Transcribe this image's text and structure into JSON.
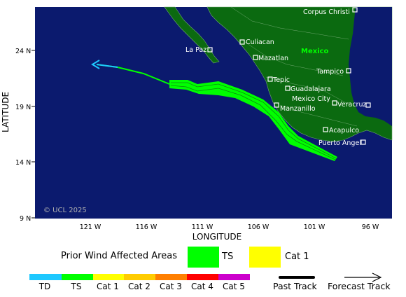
{
  "axes": {
    "x_title": "LONGITUDE",
    "y_title": "LATITUDE",
    "x_ticks": [
      "121 W",
      "116 W",
      "111 W",
      "106 W",
      "101 W",
      "96 W"
    ],
    "y_ticks": [
      "24 N",
      "19 N",
      "14 N",
      "9 N"
    ]
  },
  "map": {
    "copyright": "© UCL 2025",
    "country_label": "Mexico",
    "cities": [
      "Corpus Christi",
      "La Paz",
      "Culiacan",
      "Mazatlan",
      "Tampico",
      "Tepic",
      "Guadalajara",
      "Mexico City",
      "Veracruz",
      "Manzanillo",
      "Acapulco",
      "Puerto Angel"
    ],
    "colors": {
      "ocean": "#0b1a6e",
      "land": "#0b6a10",
      "swath": "#00ff00",
      "forecast": "#1ec8ff"
    }
  },
  "legend": {
    "prior_wind_title": "Prior Wind Affected Areas",
    "swatch_ts": "TS",
    "swatch_cat1": "Cat 1",
    "scale": [
      "TD",
      "TS",
      "Cat 1",
      "Cat 2",
      "Cat 3",
      "Cat 4",
      "Cat 5"
    ],
    "scale_colors": [
      "#1ec8ff",
      "#00ff00",
      "#ffff00",
      "#ffcc00",
      "#ff7f00",
      "#ff0000",
      "#cc00cc"
    ],
    "past_track": "Past Track",
    "forecast_track": "Forecast Track"
  }
}
